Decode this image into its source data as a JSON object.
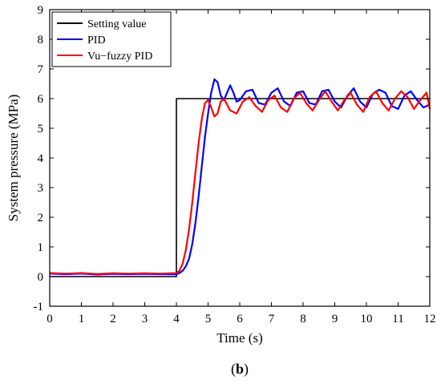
{
  "chart_data": {
    "type": "line",
    "xlabel": "Time (s)",
    "ylabel": "System pressure (MPa)",
    "xlim": [
      0,
      12
    ],
    "ylim": [
      -1,
      9
    ],
    "x_ticks": [
      "0",
      "1",
      "2",
      "3",
      "4",
      "5",
      "6",
      "7",
      "8",
      "9",
      "10",
      "11",
      "12"
    ],
    "y_ticks": [
      "-1",
      "0",
      "1",
      "2",
      "3",
      "4",
      "5",
      "6",
      "7",
      "8",
      "9"
    ],
    "grid": false,
    "legend_position": "top-left",
    "series": [
      {
        "name": "Setting value",
        "color": "#000000",
        "x": [
          0,
          4,
          4,
          12
        ],
        "y": [
          0,
          0,
          6,
          6
        ]
      },
      {
        "name": "PID",
        "color": "#0000ff",
        "x": [
          0,
          0.5,
          1,
          1.5,
          2,
          2.5,
          3,
          3.5,
          4,
          4.1,
          4.2,
          4.3,
          4.4,
          4.5,
          4.6,
          4.7,
          4.8,
          4.9,
          5.0,
          5.1,
          5.2,
          5.3,
          5.4,
          5.5,
          5.6,
          5.7,
          5.8,
          5.9,
          6.0,
          6.2,
          6.4,
          6.6,
          6.8,
          7.0,
          7.2,
          7.4,
          7.6,
          7.8,
          8.0,
          8.2,
          8.4,
          8.6,
          8.8,
          9.0,
          9.2,
          9.4,
          9.6,
          9.8,
          10.0,
          10.2,
          10.4,
          10.6,
          10.8,
          11.0,
          11.2,
          11.4,
          11.6,
          11.8,
          12.0
        ],
        "y": [
          0.1,
          0.08,
          0.1,
          0.07,
          0.09,
          0.08,
          0.09,
          0.08,
          0.08,
          0.12,
          0.2,
          0.35,
          0.6,
          1.1,
          1.8,
          2.7,
          3.7,
          4.7,
          5.5,
          6.2,
          6.65,
          6.55,
          6.1,
          5.95,
          6.2,
          6.45,
          6.2,
          5.9,
          5.95,
          6.25,
          6.3,
          5.85,
          5.8,
          6.2,
          6.35,
          5.9,
          5.75,
          6.2,
          6.25,
          5.85,
          5.8,
          6.25,
          6.3,
          5.9,
          5.7,
          6.1,
          6.35,
          5.9,
          5.7,
          6.15,
          6.3,
          6.2,
          5.75,
          5.65,
          6.1,
          6.25,
          5.95,
          5.7,
          5.8
        ]
      },
      {
        "name": "Vu−fuzzy PID",
        "color": "#ff0000",
        "x": [
          0,
          0.5,
          1,
          1.5,
          2,
          2.5,
          3,
          3.5,
          4,
          4.1,
          4.2,
          4.3,
          4.4,
          4.5,
          4.6,
          4.7,
          4.8,
          4.9,
          5.0,
          5.1,
          5.2,
          5.3,
          5.4,
          5.5,
          5.7,
          5.9,
          6.1,
          6.3,
          6.5,
          6.7,
          6.9,
          7.1,
          7.3,
          7.5,
          7.7,
          7.9,
          8.1,
          8.3,
          8.5,
          8.7,
          8.9,
          9.1,
          9.3,
          9.5,
          9.7,
          9.9,
          10.1,
          10.3,
          10.5,
          10.7,
          10.9,
          11.1,
          11.3,
          11.5,
          11.7,
          11.9,
          12.0
        ],
        "y": [
          0.12,
          0.1,
          0.12,
          0.09,
          0.11,
          0.1,
          0.11,
          0.1,
          0.12,
          0.2,
          0.45,
          0.9,
          1.6,
          2.5,
          3.5,
          4.5,
          5.3,
          5.85,
          5.95,
          5.7,
          5.4,
          5.5,
          5.9,
          6.0,
          5.6,
          5.5,
          5.9,
          6.05,
          5.75,
          5.55,
          5.95,
          6.1,
          5.7,
          5.55,
          6.0,
          6.2,
          5.85,
          5.6,
          5.95,
          6.25,
          5.9,
          5.6,
          5.95,
          6.2,
          5.8,
          5.55,
          6.05,
          6.25,
          5.85,
          5.6,
          6.0,
          6.25,
          6.05,
          5.65,
          5.95,
          6.2,
          5.65
        ]
      }
    ]
  },
  "caption": {
    "open": "(",
    "letter": "b",
    "close": ")"
  }
}
